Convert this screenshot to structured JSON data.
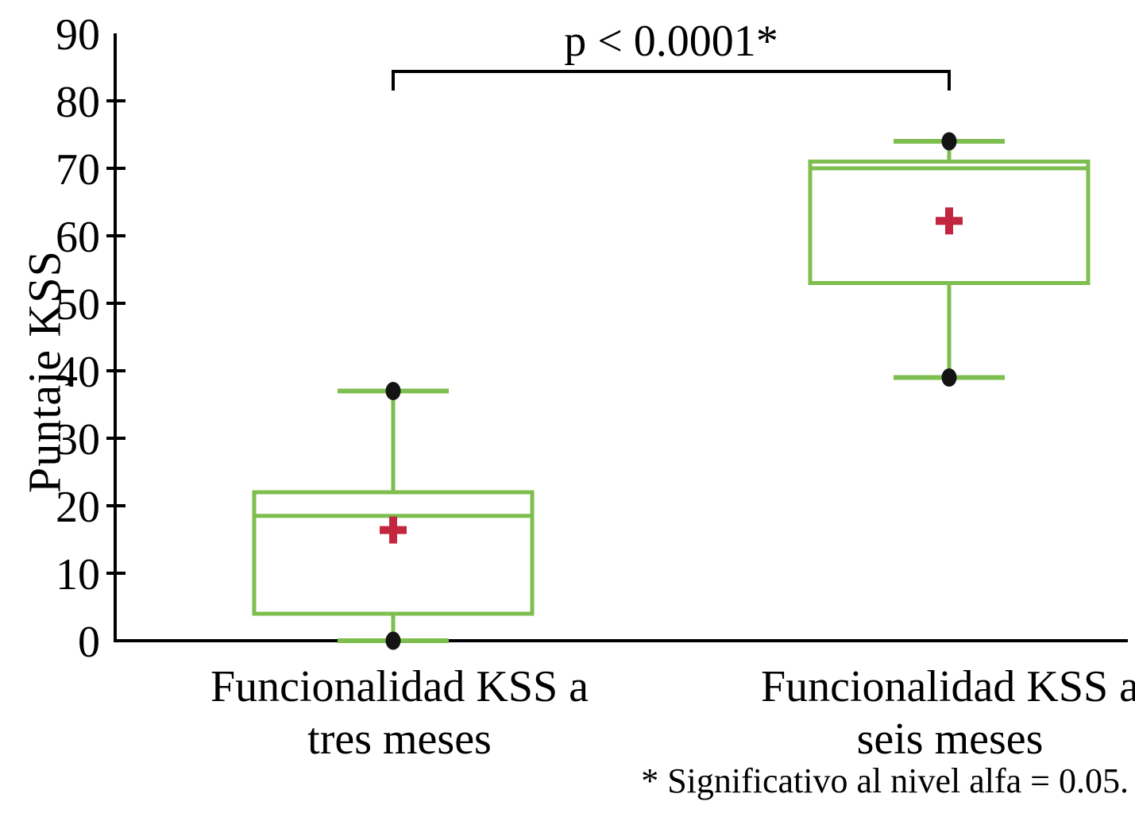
{
  "chart_data": {
    "type": "boxplot",
    "title": "",
    "ylabel": "Puntaje KSS",
    "xlabel": "",
    "ylim": [
      0,
      90
    ],
    "yticks": [
      0,
      10,
      20,
      30,
      40,
      50,
      60,
      70,
      80,
      90
    ],
    "grid": false,
    "legend": "none",
    "series": [
      {
        "label": "Funcionalidad KSS a tres meses",
        "label_lines": [
          "Funcionalidad KSS a",
          "tres meses"
        ],
        "min": 0,
        "q1": 4,
        "median": 18.5,
        "q3": 22,
        "max": 37,
        "mean": 16.4
      },
      {
        "label": "Funcionalidad KSS a seis meses",
        "label_lines": [
          "Funcionalidad KSS a",
          "seis meses"
        ],
        "min": 39,
        "q1": 53,
        "median": 70,
        "q3": 71,
        "max": 74,
        "mean": 62.2
      }
    ],
    "significance": {
      "label": "p < 0.0001*",
      "between": [
        0,
        1
      ]
    },
    "footnote": "* Significativo al nivel alfa = 0.05.",
    "colors": {
      "box": "#7DBE4F",
      "mean_marker": "#C32740",
      "outlier_dot": "#141414",
      "axis": "#000000",
      "background": "#FFFFFF"
    }
  }
}
